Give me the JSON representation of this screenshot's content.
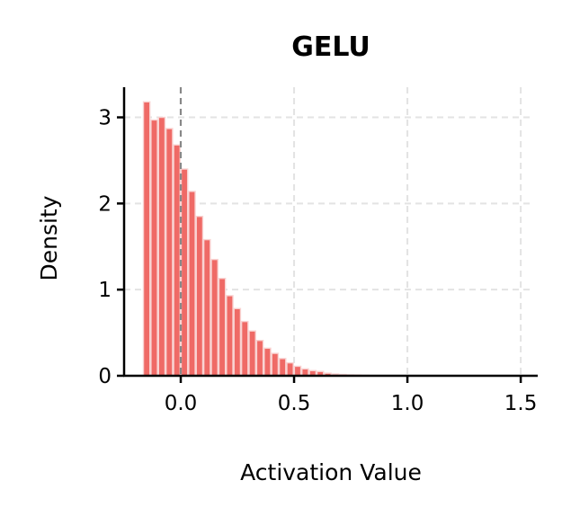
{
  "chart_data": {
    "type": "bar",
    "subtype": "histogram",
    "title": "GELU",
    "xlabel": "Activation Value",
    "ylabel": "Density",
    "xlim": [
      -0.25,
      1.575
    ],
    "ylim": [
      0,
      3.35
    ],
    "xticks": [
      0.0,
      0.5,
      1.0,
      1.5
    ],
    "xtick_labels": [
      "0.0",
      "0.5",
      "1.0",
      "1.5"
    ],
    "yticks": [
      0,
      1,
      2,
      3
    ],
    "ytick_labels": [
      "0",
      "1",
      "2",
      "3"
    ],
    "grid": true,
    "grid_style": "dashed",
    "reference_line": {
      "x": 0.0,
      "style": "dashed",
      "color": "#888888"
    },
    "bar_color": "#EF6A66",
    "bar_edge_color": "#F9D3D2",
    "bin_start": -0.167,
    "bin_width": 0.0333,
    "values": [
      3.18,
      2.97,
      3.0,
      2.87,
      2.68,
      2.4,
      2.14,
      1.85,
      1.58,
      1.35,
      1.13,
      0.93,
      0.78,
      0.63,
      0.52,
      0.41,
      0.32,
      0.26,
      0.2,
      0.15,
      0.11,
      0.08,
      0.06,
      0.05,
      0.03,
      0.02,
      0.015,
      0.01,
      0.008,
      0.005,
      0.003
    ],
    "legend": null
  }
}
